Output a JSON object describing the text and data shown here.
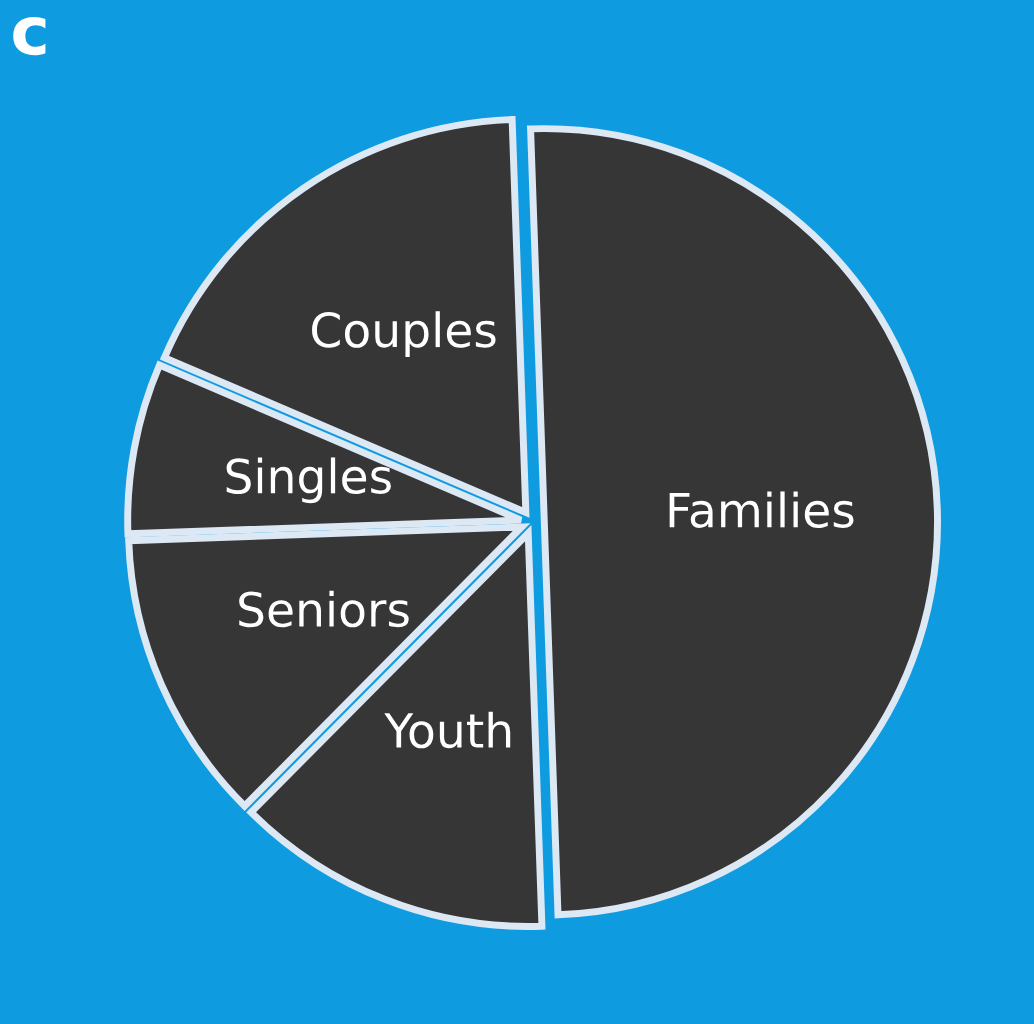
{
  "chart_data": {
    "type": "pie",
    "categories": [
      "Families",
      "Youth",
      "Seniors",
      "Singles",
      "Couples"
    ],
    "values": [
      50,
      13,
      12,
      7,
      18
    ],
    "colors": [
      "#363636",
      "#363636",
      "#363636",
      "#363636",
      "#363636"
    ],
    "annotations": [
      "c"
    ],
    "legend": false
  }
}
